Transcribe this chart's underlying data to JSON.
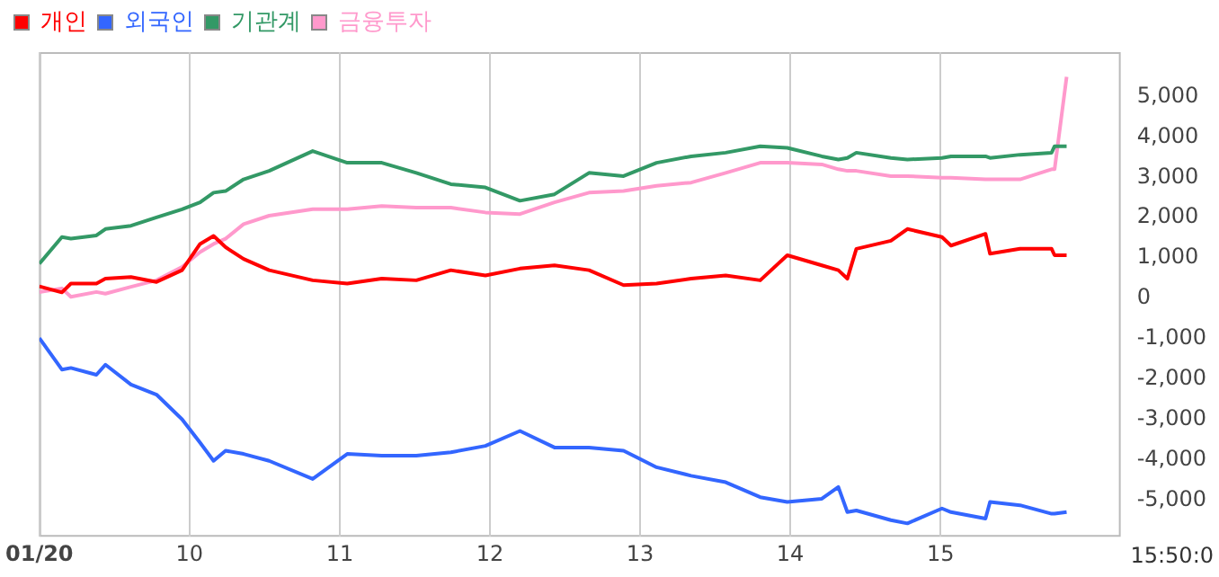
{
  "chart_data": {
    "type": "line",
    "x": [
      9.0,
      9.15,
      9.21,
      9.38,
      9.44,
      9.61,
      9.78,
      9.95,
      10.07,
      10.16,
      10.24,
      10.36,
      10.53,
      10.82,
      11.05,
      11.28,
      11.51,
      11.74,
      11.97,
      12.2,
      12.43,
      12.66,
      12.89,
      13.11,
      13.34,
      13.57,
      13.8,
      13.98,
      14.21,
      14.32,
      14.38,
      14.44,
      14.67,
      14.78,
      15.01,
      15.07,
      15.3,
      15.33,
      15.53,
      15.74,
      15.76,
      15.84
    ],
    "series": [
      {
        "name": "개인",
        "color": "#ff0000",
        "values": [
          300,
          150,
          370,
          370,
          490,
          530,
          410,
          700,
          1350,
          1550,
          1270,
          980,
          700,
          450,
          370,
          490,
          450,
          700,
          570,
          740,
          820,
          700,
          330,
          370,
          490,
          570,
          450,
          1070,
          820,
          700,
          490,
          1230,
          1430,
          1720,
          1520,
          1310,
          1600,
          1110,
          1230,
          1230,
          1070,
          1070
        ]
      },
      {
        "name": "외국인",
        "color": "#3366ff",
        "values": [
          -980,
          -1760,
          -1720,
          -1890,
          -1640,
          -2130,
          -2380,
          -2990,
          -3570,
          -4020,
          -3770,
          -3850,
          -4020,
          -4470,
          -3850,
          -3890,
          -3890,
          -3810,
          -3650,
          -3280,
          -3690,
          -3690,
          -3770,
          -4180,
          -4390,
          -4550,
          -4920,
          -5040,
          -4960,
          -4670,
          -5290,
          -5250,
          -5490,
          -5570,
          -5200,
          -5290,
          -5450,
          -5040,
          -5120,
          -5330,
          -5330,
          -5290
        ]
      },
      {
        "name": "기관계",
        "color": "#339966",
        "values": [
          860,
          1520,
          1480,
          1560,
          1720,
          1800,
          2010,
          2210,
          2380,
          2620,
          2660,
          2950,
          3160,
          3650,
          3360,
          3360,
          3110,
          2830,
          2750,
          2420,
          2580,
          3110,
          3030,
          3360,
          3520,
          3610,
          3770,
          3730,
          3520,
          3440,
          3480,
          3610,
          3480,
          3440,
          3480,
          3520,
          3520,
          3480,
          3560,
          3610,
          3770,
          3770
        ]
      },
      {
        "name": "금융투자",
        "color": "#ff99cc",
        "values": [
          160,
          250,
          40,
          160,
          120,
          290,
          450,
          780,
          1150,
          1350,
          1480,
          1840,
          2050,
          2210,
          2210,
          2290,
          2250,
          2250,
          2130,
          2090,
          2380,
          2620,
          2660,
          2790,
          2870,
          3110,
          3360,
          3360,
          3320,
          3200,
          3160,
          3160,
          3030,
          3030,
          2990,
          2990,
          2950,
          2950,
          2950,
          3200,
          3200,
          5490
        ]
      }
    ],
    "xlim": [
      9,
      16.2
    ],
    "xticks": [
      {
        "value": 9,
        "label": "01/20"
      },
      {
        "value": 10,
        "label": "10"
      },
      {
        "value": 11,
        "label": "11"
      },
      {
        "value": 12,
        "label": "12"
      },
      {
        "value": 13,
        "label": "13"
      },
      {
        "value": 14,
        "label": "14"
      },
      {
        "value": 15,
        "label": "15"
      }
    ],
    "ylim": [
      -5900,
      6100
    ],
    "yticks": [
      {
        "value": -5000,
        "label": "-5,000"
      },
      {
        "value": -4000,
        "label": "-4,000"
      },
      {
        "value": -3000,
        "label": "-3,000"
      },
      {
        "value": -2000,
        "label": "-2,000"
      },
      {
        "value": -1000,
        "label": "-1,000"
      },
      0,
      {
        "value": 1000,
        "label": "1,000"
      },
      {
        "value": 2000,
        "label": "2,000"
      },
      {
        "value": 3000,
        "label": "3,000"
      },
      {
        "value": 4000,
        "label": "4,000"
      },
      {
        "value": 5000,
        "label": "5,000"
      }
    ],
    "annotations": [
      "15:50:0"
    ],
    "grid": "x",
    "legend": "top left",
    "marker": "none",
    "line_style": "solid"
  }
}
